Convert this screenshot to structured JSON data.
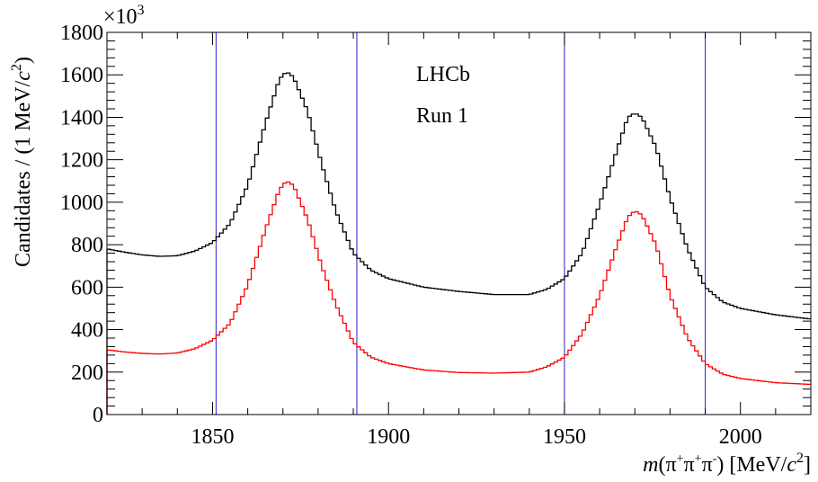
{
  "chart_data": {
    "type": "line",
    "xlabel": "m(π⁺π⁺π⁻) [MeV/c²]",
    "ylabel": "Candidates / (1 MeV/c²)",
    "y_multiplier": "×10³",
    "xlim": [
      1820,
      2020
    ],
    "ylim": [
      0,
      1800
    ],
    "x_ticks": [
      1850,
      1900,
      1950,
      2000
    ],
    "y_ticks": [
      0,
      200,
      400,
      600,
      800,
      1000,
      1200,
      1400,
      1600,
      1800
    ],
    "annotations": [
      "LHCb",
      "Run 1"
    ],
    "vertical_lines_x": [
      1851,
      1891,
      1950,
      1990
    ],
    "legend": "none",
    "grid": false,
    "series": [
      {
        "color": "#000000",
        "points": [
          [
            1820,
            780
          ],
          [
            1825,
            765
          ],
          [
            1830,
            752
          ],
          [
            1835,
            745
          ],
          [
            1840,
            748
          ],
          [
            1845,
            770
          ],
          [
            1850,
            810
          ],
          [
            1855,
            900
          ],
          [
            1860,
            1080
          ],
          [
            1865,
            1370
          ],
          [
            1869,
            1580
          ],
          [
            1871,
            1615
          ],
          [
            1873,
            1590
          ],
          [
            1877,
            1430
          ],
          [
            1881,
            1180
          ],
          [
            1885,
            960
          ],
          [
            1890,
            760
          ],
          [
            1895,
            680
          ],
          [
            1900,
            640
          ],
          [
            1910,
            600
          ],
          [
            1920,
            580
          ],
          [
            1930,
            565
          ],
          [
            1940,
            565
          ],
          [
            1945,
            590
          ],
          [
            1950,
            640
          ],
          [
            1955,
            760
          ],
          [
            1960,
            990
          ],
          [
            1965,
            1250
          ],
          [
            1968,
            1400
          ],
          [
            1970,
            1420
          ],
          [
            1972,
            1400
          ],
          [
            1976,
            1260
          ],
          [
            1980,
            1020
          ],
          [
            1985,
            780
          ],
          [
            1990,
            600
          ],
          [
            1995,
            530
          ],
          [
            2000,
            500
          ],
          [
            2010,
            470
          ],
          [
            2020,
            450
          ]
        ]
      },
      {
        "color": "#ff0000",
        "points": [
          [
            1820,
            305
          ],
          [
            1825,
            295
          ],
          [
            1830,
            288
          ],
          [
            1835,
            285
          ],
          [
            1840,
            290
          ],
          [
            1845,
            310
          ],
          [
            1850,
            350
          ],
          [
            1855,
            430
          ],
          [
            1860,
            610
          ],
          [
            1865,
            870
          ],
          [
            1869,
            1060
          ],
          [
            1871,
            1100
          ],
          [
            1873,
            1080
          ],
          [
            1877,
            920
          ],
          [
            1881,
            700
          ],
          [
            1885,
            520
          ],
          [
            1890,
            340
          ],
          [
            1895,
            270
          ],
          [
            1900,
            240
          ],
          [
            1910,
            210
          ],
          [
            1920,
            198
          ],
          [
            1930,
            195
          ],
          [
            1940,
            200
          ],
          [
            1945,
            225
          ],
          [
            1950,
            270
          ],
          [
            1955,
            380
          ],
          [
            1960,
            560
          ],
          [
            1965,
            800
          ],
          [
            1968,
            930
          ],
          [
            1970,
            960
          ],
          [
            1972,
            940
          ],
          [
            1976,
            800
          ],
          [
            1980,
            560
          ],
          [
            1985,
            360
          ],
          [
            1990,
            240
          ],
          [
            1995,
            190
          ],
          [
            2000,
            170
          ],
          [
            2010,
            150
          ],
          [
            2020,
            142
          ]
        ]
      }
    ]
  }
}
